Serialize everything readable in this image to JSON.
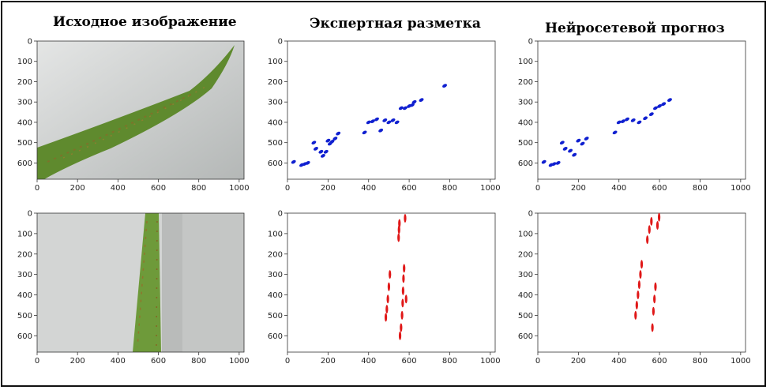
{
  "titles": {
    "original": "Исходное изображение",
    "expert": "Экспертная разметка",
    "neural": "Нейросетевой прогноз"
  },
  "axes": {
    "x_ticks": [
      "0",
      "200",
      "400",
      "600",
      "800",
      "1000"
    ],
    "y_ticks": [
      "0",
      "100",
      "200",
      "300",
      "400",
      "500",
      "600"
    ]
  },
  "colors": {
    "blue_mask": "#1020d0",
    "red_mask": "#e01818",
    "leaf_green": "#5f8a2e",
    "background_gray": "#c9cccb"
  },
  "chart_data": [
    {
      "type": "image",
      "panel": "row1-original",
      "xlim": [
        0,
        1024
      ],
      "ylim": [
        680,
        0
      ],
      "grid": false
    },
    {
      "type": "scatter",
      "panel": "row1-expert",
      "xlim": [
        0,
        1024
      ],
      "ylim": [
        680,
        0
      ],
      "grid": false,
      "series": [
        {
          "color": "#1020d0",
          "x": [
            30,
            70,
            85,
            100,
            130,
            140,
            165,
            175,
            190,
            200,
            210,
            220,
            235,
            250,
            380,
            400,
            420,
            440,
            460,
            480,
            500,
            520,
            540,
            560,
            580,
            600,
            615,
            625,
            660,
            775
          ],
          "y": [
            595,
            610,
            605,
            600,
            500,
            530,
            545,
            565,
            545,
            490,
            505,
            495,
            480,
            455,
            450,
            400,
            395,
            385,
            440,
            390,
            400,
            390,
            400,
            330,
            330,
            320,
            315,
            300,
            290,
            220
          ]
        }
      ]
    },
    {
      "type": "scatter",
      "panel": "row1-neural",
      "xlim": [
        0,
        1024
      ],
      "ylim": [
        680,
        0
      ],
      "grid": false,
      "series": [
        {
          "color": "#1020d0",
          "x": [
            30,
            65,
            80,
            100,
            120,
            135,
            160,
            180,
            200,
            220,
            240,
            380,
            400,
            420,
            440,
            470,
            500,
            530,
            560,
            580,
            600,
            620,
            650
          ],
          "y": [
            595,
            610,
            605,
            600,
            500,
            530,
            540,
            560,
            490,
            505,
            480,
            450,
            400,
            395,
            385,
            390,
            400,
            380,
            360,
            330,
            320,
            310,
            290
          ]
        }
      ]
    },
    {
      "type": "image",
      "panel": "row2-original",
      "xlim": [
        0,
        1024
      ],
      "ylim": [
        680,
        0
      ],
      "grid": false
    },
    {
      "type": "scatter",
      "panel": "row2-expert",
      "xlim": [
        0,
        1024
      ],
      "ylim": [
        680,
        0
      ],
      "grid": false,
      "series": [
        {
          "color": "#e01818",
          "x": [
            485,
            490,
            495,
            500,
            505,
            548,
            550,
            552,
            560,
            565,
            568,
            570,
            572,
            575,
            580,
            555,
            585
          ],
          "y": [
            510,
            470,
            420,
            360,
            300,
            120,
            80,
            50,
            560,
            500,
            440,
            380,
            320,
            270,
            25,
            600,
            420
          ]
        }
      ]
    },
    {
      "type": "scatter",
      "panel": "row2-neural",
      "xlim": [
        0,
        1024
      ],
      "ylim": [
        680,
        0
      ],
      "grid": false,
      "series": [
        {
          "color": "#e01818",
          "x": [
            482,
            488,
            494,
            500,
            506,
            512,
            540,
            550,
            560,
            565,
            570,
            575,
            580,
            590,
            598
          ],
          "y": [
            500,
            450,
            400,
            350,
            300,
            250,
            130,
            80,
            40,
            560,
            480,
            420,
            360,
            60,
            20
          ]
        }
      ]
    }
  ]
}
